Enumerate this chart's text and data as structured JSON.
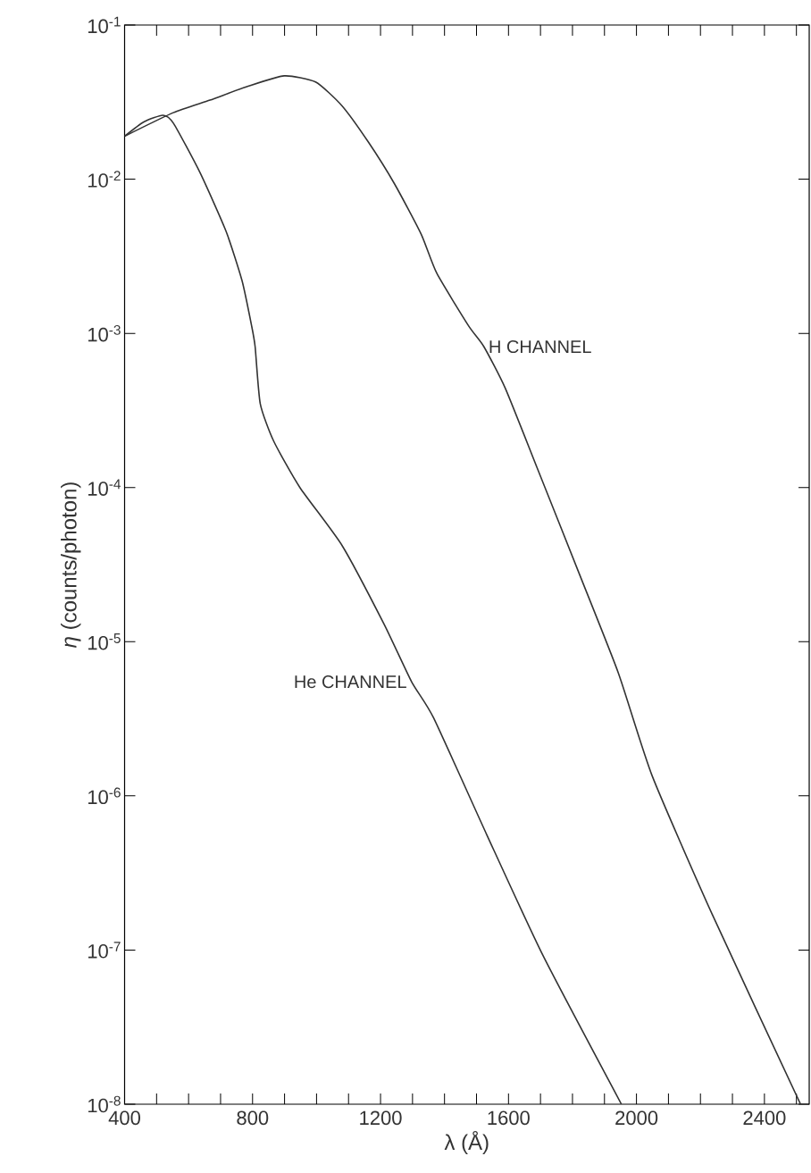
{
  "chart_data": {
    "type": "line",
    "xlabel": "λ (Å)",
    "ylabel": "*η* (counts/photon)",
    "log": "y",
    "xlim": [
      400,
      2540
    ],
    "ylim": [
      1e-08,
      0.1
    ],
    "xticks": [
      400,
      {
        "value": 500,
        "label": null
      },
      {
        "value": 600,
        "label": null
      },
      {
        "value": 700,
        "label": null
      },
      800,
      {
        "value": 900,
        "label": null
      },
      {
        "value": 1000,
        "label": null
      },
      {
        "value": 1100,
        "label": null
      },
      1200,
      {
        "value": 1300,
        "label": null
      },
      {
        "value": 1400,
        "label": null
      },
      {
        "value": 1500,
        "label": null
      },
      1600,
      {
        "value": 1700,
        "label": null
      },
      {
        "value": 1800,
        "label": null
      },
      {
        "value": 1900,
        "label": null
      },
      2000,
      {
        "value": 2100,
        "label": null
      },
      {
        "value": 2200,
        "label": null
      },
      {
        "value": 2300,
        "label": null
      },
      2400,
      {
        "value": 2500,
        "label": null
      }
    ],
    "yticks": [
      {
        "value": 1e-08,
        "label": "10$^{-8}$"
      },
      {
        "value": 1e-07,
        "label": "10$^{-7}$"
      },
      {
        "value": 1e-06,
        "label": "10$^{-6}$"
      },
      {
        "value": 1e-05,
        "label": "10$^{-5}$"
      },
      {
        "value": 0.0001,
        "label": "10$^{-4}$"
      },
      {
        "value": 0.001,
        "label": "10$^{-3}$"
      },
      {
        "value": 0.01,
        "label": "10$^{-2}$"
      },
      {
        "value": 0.1,
        "label": "10$^{-1}$"
      }
    ],
    "grid": false,
    "marker": "none",
    "line_style": "solid",
    "series": [
      {
        "color": "#333333",
        "x": [
          400,
          552,
          667,
          782,
          899,
          997,
          1079,
          1162,
          1244,
          1327,
          1376,
          1475,
          1523,
          1590,
          1689,
          1820,
          1943,
          2049,
          2237,
          2513
        ],
        "values": [
          0.019,
          0.027,
          0.0326,
          0.0398,
          0.0468,
          0.0427,
          0.03,
          0.0174,
          0.0093,
          0.0044,
          0.00245,
          0.00112,
          0.00082,
          0.00044,
          0.000135,
          2.8e-05,
          6.3e-06,
          1.35e-06,
          1.7e-07,
          1e-08
        ]
      },
      {
        "color": "#333333",
        "x": [
          400,
          460,
          520,
          553,
          636,
          717,
          767,
          797,
          808,
          824,
          866,
          948,
          1080,
          1211,
          1297,
          1366,
          1532,
          1708,
          1953
        ],
        "values": [
          0.019,
          0.0235,
          0.026,
          0.023,
          0.011,
          0.0046,
          0.0022,
          0.00112,
          0.00082,
          0.00035,
          0.0002,
          0.0001,
          4.2e-05,
          1.3e-05,
          5.5e-06,
          3.2e-06,
          5.6e-07,
          9.2e-08,
          1e-08
        ]
      }
    ],
    "annotations": [
      {
        "text": "H CHANNEL",
        "x": 1523,
        "y": 0.00082
      },
      {
        "text": "He CHANNEL",
        "x": 1297,
        "y": 5.5e-06
      }
    ]
  }
}
